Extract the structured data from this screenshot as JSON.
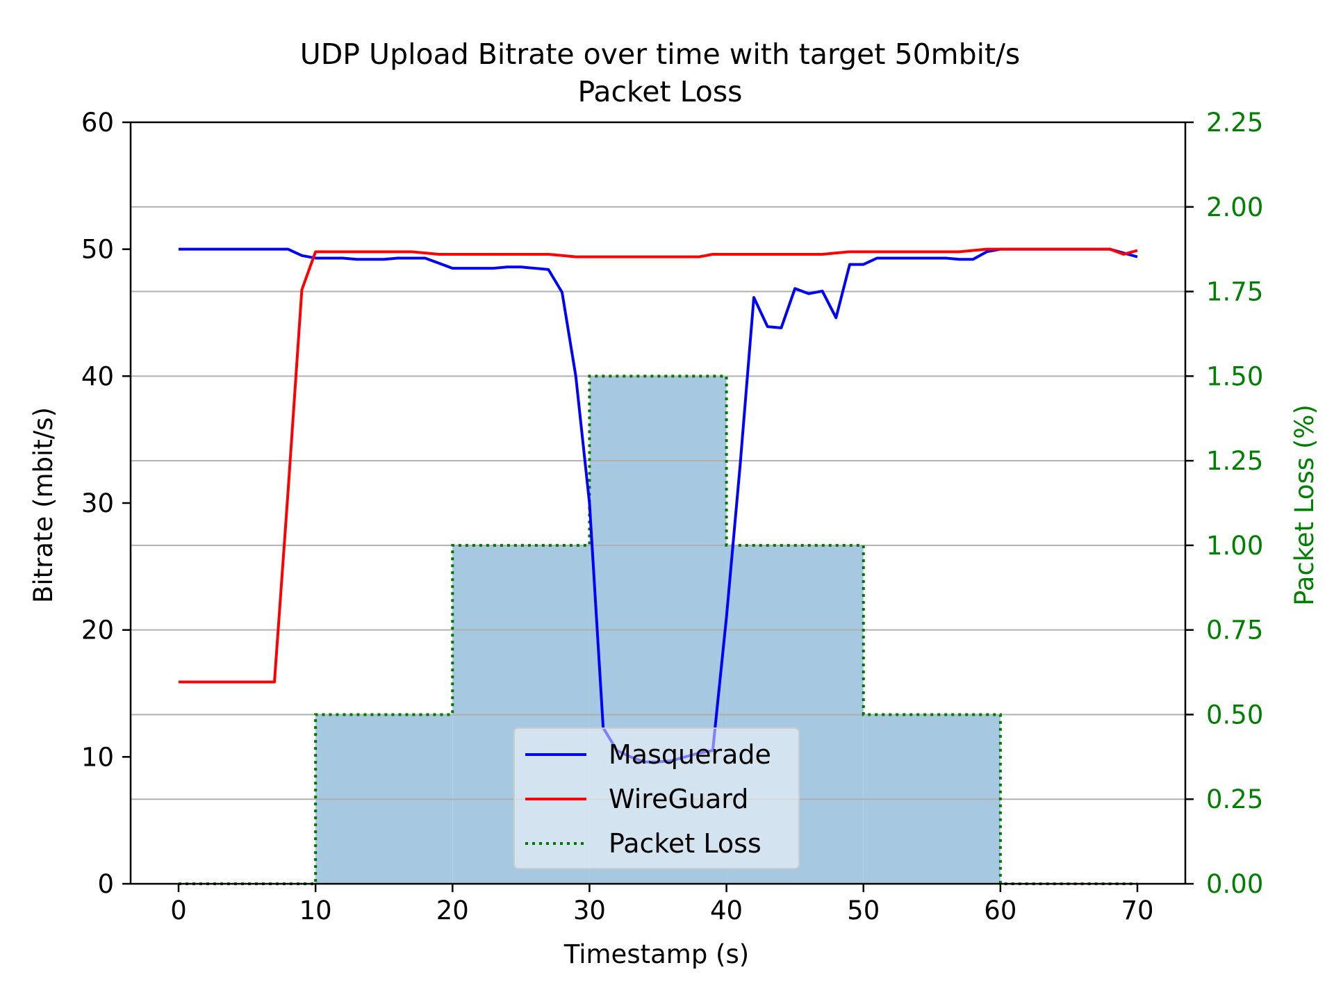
{
  "chart_data": {
    "type": "line",
    "title": "UDP Upload Bitrate over time with target 50mbit/s",
    "subtitle": "Packet Loss",
    "xlabel": "Timestamp (s)",
    "ylabel": "Bitrate (mbit/s)",
    "y2label": "Packet Loss (%)",
    "xlim": [
      -3.5,
      73.5
    ],
    "ylim": [
      0,
      60
    ],
    "y2lim": [
      0,
      2.25
    ],
    "xticks": [
      0,
      10,
      20,
      30,
      40,
      50,
      60,
      70
    ],
    "yticks": [
      0,
      10,
      20,
      30,
      40,
      50,
      60
    ],
    "y2ticks": [
      "0.00",
      "0.25",
      "0.50",
      "0.75",
      "1.00",
      "1.25",
      "1.50",
      "1.75",
      "2.00",
      "2.25"
    ],
    "grid": "horizontal (secondary axis)",
    "legend_position": "lower center",
    "legend": [
      "Masquerade",
      "WireGuard",
      "Packet Loss"
    ],
    "series": [
      {
        "name": "Masquerade",
        "axis": "left",
        "color": "#0000ff",
        "x": [
          0,
          1,
          2,
          3,
          4,
          5,
          6,
          7,
          8,
          9,
          10,
          11,
          12,
          13,
          14,
          15,
          16,
          17,
          18,
          19,
          20,
          21,
          22,
          23,
          24,
          25,
          26,
          27,
          28,
          29,
          30,
          31,
          32,
          33,
          34,
          35,
          36,
          37,
          38,
          39,
          40,
          41,
          42,
          43,
          44,
          45,
          46,
          47,
          48,
          49,
          50,
          51,
          52,
          53,
          54,
          55,
          56,
          57,
          58,
          59,
          60,
          61,
          62,
          63,
          64,
          65,
          66,
          67,
          68,
          69,
          70
        ],
        "values": [
          50.0,
          50.0,
          50.0,
          50.0,
          50.0,
          50.0,
          50.0,
          50.0,
          50.0,
          49.5,
          49.3,
          49.3,
          49.3,
          49.2,
          49.2,
          49.2,
          49.3,
          49.3,
          49.3,
          48.9,
          48.5,
          48.5,
          48.5,
          48.5,
          48.6,
          48.6,
          48.5,
          48.4,
          46.6,
          40.0,
          30.0,
          12.3,
          10.5,
          10.0,
          9.6,
          9.6,
          9.7,
          10.0,
          10.3,
          10.5,
          21.0,
          33.0,
          46.2,
          43.9,
          43.8,
          46.9,
          46.5,
          46.7,
          44.6,
          48.8,
          48.8,
          49.3,
          49.3,
          49.3,
          49.3,
          49.3,
          49.3,
          49.2,
          49.2,
          49.8,
          50.0,
          50.0,
          50.0,
          50.0,
          50.0,
          50.0,
          50.0,
          50.0,
          50.0,
          49.7,
          49.4
        ]
      },
      {
        "name": "WireGuard",
        "axis": "left",
        "color": "#ff0000",
        "x": [
          0,
          1,
          2,
          3,
          4,
          5,
          6,
          7,
          8,
          9,
          10,
          11,
          12,
          13,
          14,
          15,
          16,
          17,
          18,
          19,
          20,
          21,
          22,
          23,
          24,
          25,
          26,
          27,
          28,
          29,
          30,
          31,
          32,
          33,
          34,
          35,
          36,
          37,
          38,
          39,
          40,
          41,
          42,
          43,
          44,
          45,
          46,
          47,
          48,
          49,
          50,
          51,
          52,
          53,
          54,
          55,
          56,
          57,
          58,
          59,
          60,
          61,
          62,
          63,
          64,
          65,
          66,
          67,
          68,
          69,
          70
        ],
        "values": [
          15.9,
          15.9,
          15.9,
          15.9,
          15.9,
          15.9,
          15.9,
          15.9,
          31.0,
          46.8,
          49.8,
          49.8,
          49.8,
          49.8,
          49.8,
          49.8,
          49.8,
          49.8,
          49.7,
          49.6,
          49.6,
          49.6,
          49.6,
          49.6,
          49.6,
          49.6,
          49.6,
          49.6,
          49.5,
          49.4,
          49.4,
          49.4,
          49.4,
          49.4,
          49.4,
          49.4,
          49.4,
          49.4,
          49.4,
          49.6,
          49.6,
          49.6,
          49.6,
          49.6,
          49.6,
          49.6,
          49.6,
          49.6,
          49.7,
          49.8,
          49.8,
          49.8,
          49.8,
          49.8,
          49.8,
          49.8,
          49.8,
          49.8,
          49.9,
          50.0,
          50.0,
          50.0,
          50.0,
          50.0,
          50.0,
          50.0,
          50.0,
          50.0,
          50.0,
          49.6,
          49.9
        ]
      },
      {
        "name": "Packet Loss",
        "axis": "right",
        "style": "dotted-steps",
        "color": "#007700",
        "fill": "#a6c8e0",
        "x": [
          0,
          10,
          20,
          30,
          40,
          50,
          60,
          70
        ],
        "values": [
          0.0,
          0.5,
          1.0,
          1.5,
          1.0,
          0.5,
          0.0,
          0.0
        ]
      }
    ]
  },
  "colors": {
    "masquerade": "#0000ff",
    "wireguard": "#ff0000",
    "packet_loss_line": "#007700",
    "packet_loss_fill": "#a6c8e0",
    "right_axis": "#008000",
    "grid": "#b0b0b0"
  }
}
